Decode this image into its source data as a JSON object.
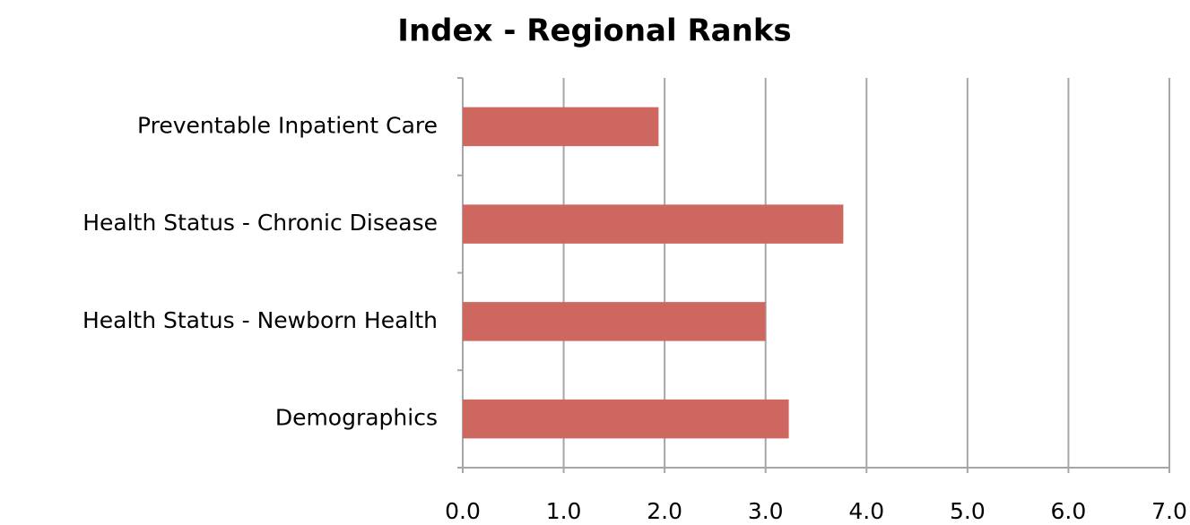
{
  "chart_data": {
    "type": "bar",
    "orientation": "horizontal",
    "title": "Index - Regional Ranks",
    "categories": [
      "Preventable Inpatient Care",
      "Health Status - Chronic Disease",
      "Health Status - Newborn Health",
      "Demographics"
    ],
    "values": [
      1.94,
      3.77,
      3.0,
      3.23
    ],
    "color": "#cd6760",
    "xlim": [
      0,
      7
    ],
    "xticks": [
      {
        "value": 0,
        "label": "0.0"
      },
      {
        "value": 1,
        "label": "1.0"
      },
      {
        "value": 2,
        "label": "2.0"
      },
      {
        "value": 3,
        "label": "3.0"
      },
      {
        "value": 4,
        "label": "4.0"
      },
      {
        "value": 5,
        "label": "5.0"
      },
      {
        "value": 6,
        "label": "6.0"
      },
      {
        "value": 7,
        "label": "7.0"
      }
    ],
    "grid": true
  }
}
